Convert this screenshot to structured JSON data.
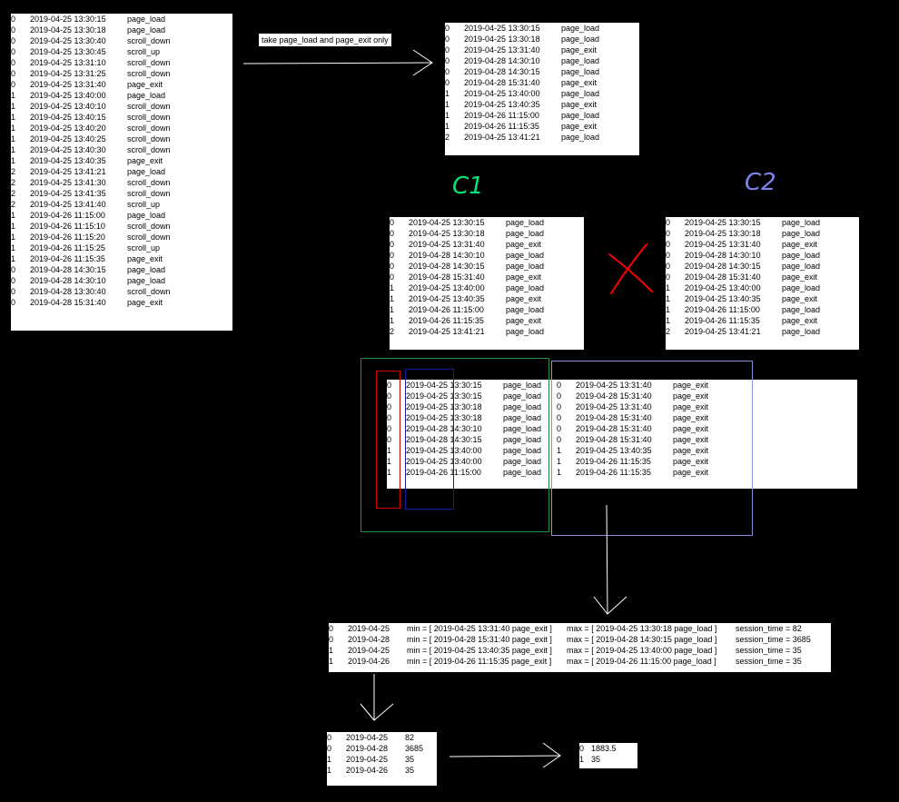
{
  "raw_events": [
    [
      "0",
      "2019-04-25 13:30:15",
      "page_load"
    ],
    [
      "0",
      "2019-04-25 13:30:18",
      "page_load"
    ],
    [
      "0",
      "2019-04-25 13:30:40",
      "scroll_down"
    ],
    [
      "0",
      "2019-04-25 13:30:45",
      "scroll_up"
    ],
    [
      "0",
      "2019-04-25 13:31:10",
      "scroll_down"
    ],
    [
      "0",
      "2019-04-25 13:31:25",
      "scroll_down"
    ],
    [
      "0",
      "2019-04-25 13:31:40",
      "page_exit"
    ],
    [
      "1",
      "2019-04-25 13:40:00",
      "page_load"
    ],
    [
      "1",
      "2019-04-25 13:40:10",
      "scroll_down"
    ],
    [
      "1",
      "2019-04-25 13:40:15",
      "scroll_down"
    ],
    [
      "1",
      "2019-04-25 13:40:20",
      "scroll_down"
    ],
    [
      "1",
      "2019-04-25 13:40:25",
      "scroll_down"
    ],
    [
      "1",
      "2019-04-25 13:40:30",
      "scroll_down"
    ],
    [
      "1",
      "2019-04-25 13:40:35",
      "page_exit"
    ],
    [
      "2",
      "2019-04-25 13:41:21",
      "page_load"
    ],
    [
      "2",
      "2019-04-25 13:41:30",
      "scroll_down"
    ],
    [
      "2",
      "2019-04-25 13:41:35",
      "scroll_down"
    ],
    [
      "2",
      "2019-04-25 13:41:40",
      "scroll_up"
    ],
    [
      "1",
      "2019-04-26 11:15:00",
      "page_load"
    ],
    [
      "1",
      "2019-04-26 11:15:10",
      "scroll_down"
    ],
    [
      "1",
      "2019-04-26 11:15:20",
      "scroll_down"
    ],
    [
      "1",
      "2019-04-26 11:15:25",
      "scroll_up"
    ],
    [
      "1",
      "2019-04-26 11:15:35",
      "page_exit"
    ],
    [
      "0",
      "2019-04-28 14:30:15",
      "page_load"
    ],
    [
      "0",
      "2019-04-28 14:30:10",
      "page_load"
    ],
    [
      "0",
      "2019-04-28 13:30:40",
      "scroll_down"
    ],
    [
      "0",
      "2019-04-28 15:31:40",
      "page_exit"
    ]
  ],
  "filter_label": "take page_load and page_exit only",
  "filtered_events": [
    [
      "0",
      "2019-04-25 13:30:15",
      "page_load"
    ],
    [
      "0",
      "2019-04-25 13:30:18",
      "page_load"
    ],
    [
      "0",
      "2019-04-25 13:31:40",
      "page_exit"
    ],
    [
      "0",
      "2019-04-28 14:30:10",
      "page_load"
    ],
    [
      "0",
      "2019-04-28 14:30:15",
      "page_load"
    ],
    [
      "0",
      "2019-04-28 15:31:40",
      "page_exit"
    ],
    [
      "1",
      "2019-04-25 13:40:00",
      "page_load"
    ],
    [
      "1",
      "2019-04-25 13:40:35",
      "page_exit"
    ],
    [
      "1",
      "2019-04-26 11:15:00",
      "page_load"
    ],
    [
      "1",
      "2019-04-26 11:15:35",
      "page_exit"
    ],
    [
      "2",
      "2019-04-25 13:41:21",
      "page_load"
    ]
  ],
  "c1_label": "C1",
  "c2_label": "C2",
  "colors": {
    "c1": "#00e676",
    "c2": "#7b85f0",
    "cross": "#ff0000",
    "red_box": "#cc0000",
    "blue_box": "#1a1aa0",
    "green_box": "#1f8f3a",
    "lav_box": "#8a8fe0"
  },
  "join_left": [
    [
      "0",
      "2019-04-25 13:30:15",
      "page_load"
    ],
    [
      "0",
      "2019-04-25 13:30:15",
      "page_load"
    ],
    [
      "0",
      "2019-04-25 13:30:18",
      "page_load"
    ],
    [
      "0",
      "2019-04-25 13:30:18",
      "page_load"
    ],
    [
      "0",
      "2019-04-28 14:30:10",
      "page_load"
    ],
    [
      "0",
      "2019-04-28 14:30:15",
      "page_load"
    ],
    [
      "1",
      "2019-04-25 13:40:00",
      "page_load"
    ],
    [
      "1",
      "2019-04-25 13:40:00",
      "page_load"
    ],
    [
      "1",
      "2019-04-26 11:15:00",
      "page_load"
    ]
  ],
  "join_right": [
    [
      "0",
      "2019-04-25 13:31:40",
      "page_exit"
    ],
    [
      "0",
      "2019-04-28 15:31:40",
      "page_exit"
    ],
    [
      "0",
      "2019-04-25 13:31:40",
      "page_exit"
    ],
    [
      "0",
      "2019-04-28 15:31:40",
      "page_exit"
    ],
    [
      "0",
      "2019-04-28 15:31:40",
      "page_exit"
    ],
    [
      "0",
      "2019-04-28 15:31:40",
      "page_exit"
    ],
    [
      "1",
      "2019-04-25 13:40:35",
      "page_exit"
    ],
    [
      "1",
      "2019-04-26 11:15:35",
      "page_exit"
    ],
    [
      "1",
      "2019-04-26 11:15:35",
      "page_exit"
    ]
  ],
  "sessions": [
    [
      "0",
      "2019-04-25",
      "min = [ 2019-04-25 13:31:40 page_exit ]",
      "max = [ 2019-04-25 13:30:18 page_load ]",
      "session_time = 82"
    ],
    [
      "0",
      "2019-04-28",
      "min = [ 2019-04-28 15:31:40 page_exit ]",
      "max = [ 2019-04-28 14:30:15 page_load ]",
      "session_time = 3685"
    ],
    [
      "1",
      "2019-04-25",
      "min = [ 2019-04-25 13:40:35 page_exit ]",
      "max = [ 2019-04-25 13:40:00 page_load ]",
      "session_time = 35"
    ],
    [
      "1",
      "2019-04-26",
      "min = [ 2019-04-26 11:15:35 page_exit ]",
      "max = [ 2019-04-26 11:15:00 page_load ]",
      "session_time = 35"
    ]
  ],
  "session_times": [
    [
      "0",
      "2019-04-25",
      "82"
    ],
    [
      "0",
      "2019-04-28",
      "3685"
    ],
    [
      "1",
      "2019-04-25",
      "35"
    ],
    [
      "1",
      "2019-04-26",
      "35"
    ]
  ],
  "averages": [
    [
      "0",
      "1883.5"
    ],
    [
      "1",
      "35"
    ]
  ]
}
